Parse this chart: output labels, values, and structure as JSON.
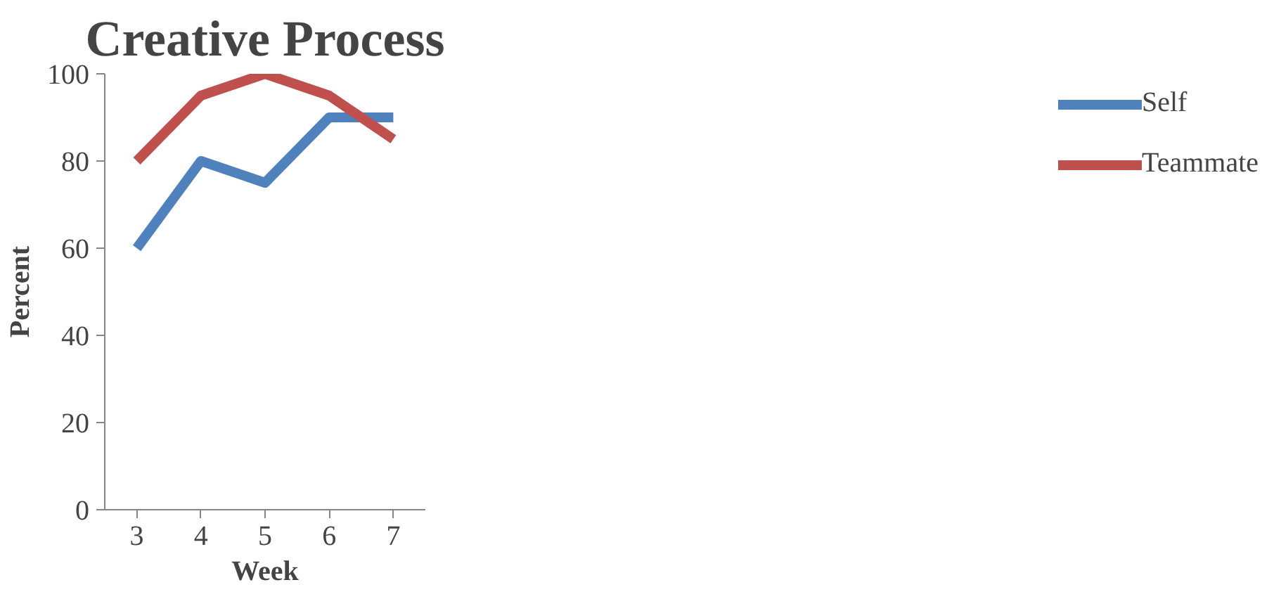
{
  "chart_data": {
    "type": "line",
    "title": "Creative Process",
    "xlabel": "Week",
    "ylabel": "Percent",
    "categories": [
      "3",
      "4",
      "5",
      "6",
      "7"
    ],
    "series": [
      {
        "name": "Self",
        "color": "#4f81bd",
        "values": [
          60,
          80,
          75,
          90,
          90
        ]
      },
      {
        "name": "Teammate",
        "color": "#c0504d",
        "values": [
          80,
          95,
          100,
          95,
          85
        ]
      }
    ],
    "ylim": [
      0,
      100
    ],
    "yticks": [
      0,
      20,
      40,
      60,
      80,
      100
    ],
    "grid": false,
    "legend": "right",
    "marker": "none",
    "line_style": "solid"
  }
}
